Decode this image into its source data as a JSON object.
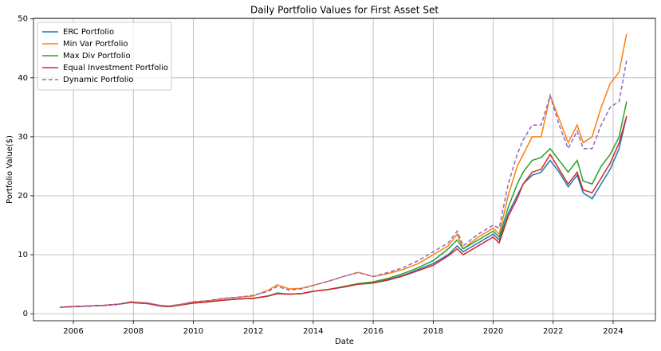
{
  "chart_data": {
    "type": "line",
    "title": "Daily Portfolio Values for First Asset Set",
    "x_label": "Date",
    "y_label": "Portfolio Value($)",
    "x": [
      2005.55,
      2006,
      2006.5,
      2007,
      2007.5,
      2007.9,
      2008.5,
      2008.9,
      2009.2,
      2009.6,
      2010,
      2010.5,
      2011,
      2011.5,
      2012,
      2012.5,
      2012.8,
      2013.2,
      2013.6,
      2014,
      2014.5,
      2015,
      2015.5,
      2016,
      2016.5,
      2017,
      2017.5,
      2018,
      2018.5,
      2018.8,
      2019,
      2019.5,
      2020,
      2020.2,
      2020.5,
      2020.8,
      2021,
      2021.3,
      2021.6,
      2021.9,
      2022.2,
      2022.5,
      2022.8,
      2023,
      2023.3,
      2023.6,
      2023.9,
      2024.2,
      2024.45
    ],
    "series": [
      {
        "name": "ERC Portfolio",
        "color": "#1f77b4",
        "linestyle": "solid",
        "values": [
          1.1,
          1.2,
          1.3,
          1.4,
          1.6,
          1.9,
          1.7,
          1.3,
          1.2,
          1.5,
          1.8,
          2.0,
          2.3,
          2.5,
          2.6,
          3.0,
          3.4,
          3.3,
          3.4,
          3.8,
          4.1,
          4.5,
          5.0,
          5.2,
          5.8,
          6.5,
          7.5,
          8.5,
          10.0,
          11.5,
          10.5,
          12.0,
          13.5,
          12.5,
          17.0,
          20.0,
          22.0,
          23.5,
          24.0,
          26.0,
          24.0,
          21.5,
          23.5,
          20.5,
          19.5,
          22.0,
          24.5,
          28.0,
          33.5
        ]
      },
      {
        "name": "Min Var Portfolio",
        "color": "#ff7f0e",
        "linestyle": "solid",
        "values": [
          1.1,
          1.2,
          1.3,
          1.4,
          1.6,
          2.0,
          1.8,
          1.4,
          1.3,
          1.6,
          2.0,
          2.2,
          2.6,
          2.8,
          3.0,
          4.0,
          4.9,
          4.2,
          4.3,
          4.8,
          5.5,
          6.3,
          7.0,
          6.3,
          6.8,
          7.5,
          8.5,
          10.0,
          11.5,
          13.5,
          11.0,
          13.0,
          14.5,
          13.5,
          20.0,
          25.0,
          27.0,
          30.0,
          30.0,
          37.0,
          33.0,
          29.0,
          32.0,
          29.0,
          30.0,
          35.0,
          39.0,
          41.0,
          47.5
        ]
      },
      {
        "name": "Max Div Portfolio",
        "color": "#2ca02c",
        "linestyle": "solid",
        "values": [
          1.1,
          1.2,
          1.3,
          1.4,
          1.6,
          1.9,
          1.7,
          1.3,
          1.2,
          1.5,
          1.8,
          2.0,
          2.3,
          2.5,
          2.6,
          3.0,
          3.5,
          3.3,
          3.4,
          3.8,
          4.1,
          4.6,
          5.1,
          5.4,
          6.0,
          6.8,
          7.8,
          9.0,
          11.0,
          12.5,
          11.0,
          12.5,
          14.0,
          13.0,
          18.0,
          22.0,
          24.0,
          26.0,
          26.5,
          28.0,
          26.0,
          24.0,
          26.0,
          22.5,
          22.0,
          25.0,
          27.0,
          30.0,
          36.0
        ]
      },
      {
        "name": "Equal Investment Portfolio",
        "color": "#d62728",
        "linestyle": "solid",
        "values": [
          1.1,
          1.2,
          1.3,
          1.4,
          1.6,
          1.9,
          1.7,
          1.3,
          1.2,
          1.5,
          1.8,
          2.0,
          2.3,
          2.5,
          2.6,
          3.0,
          3.4,
          3.3,
          3.4,
          3.8,
          4.1,
          4.5,
          5.0,
          5.2,
          5.7,
          6.4,
          7.3,
          8.2,
          9.8,
          11.0,
          10.0,
          11.5,
          13.0,
          12.0,
          16.5,
          19.5,
          22.0,
          24.0,
          24.5,
          27.0,
          24.5,
          22.0,
          24.0,
          21.0,
          20.5,
          23.0,
          25.5,
          29.0,
          33.5
        ]
      },
      {
        "name": "Dynamic Portfolio",
        "color": "#9467bd",
        "linestyle": "dashed",
        "values": [
          1.1,
          1.2,
          1.3,
          1.4,
          1.6,
          2.0,
          1.8,
          1.4,
          1.3,
          1.6,
          2.0,
          2.2,
          2.6,
          2.8,
          3.1,
          3.8,
          4.6,
          4.0,
          4.2,
          4.8,
          5.5,
          6.3,
          7.0,
          6.3,
          7.0,
          7.8,
          9.0,
          10.5,
          12.0,
          14.0,
          11.5,
          13.5,
          15.0,
          14.5,
          22.0,
          27.0,
          29.5,
          32.0,
          32.0,
          37.0,
          32.0,
          28.0,
          31.0,
          28.0,
          28.0,
          32.0,
          35.0,
          36.0,
          43.0
        ]
      }
    ],
    "xlim": [
      2004.67,
      2025.41
    ],
    "xticks": [
      2006,
      2008,
      2010,
      2012,
      2014,
      2016,
      2018,
      2020,
      2022,
      2024
    ],
    "ylim": [
      -1.2,
      50.1
    ],
    "yticks": [
      0,
      10,
      20,
      30,
      40,
      50
    ],
    "grid": true,
    "legend": "upper left"
  }
}
